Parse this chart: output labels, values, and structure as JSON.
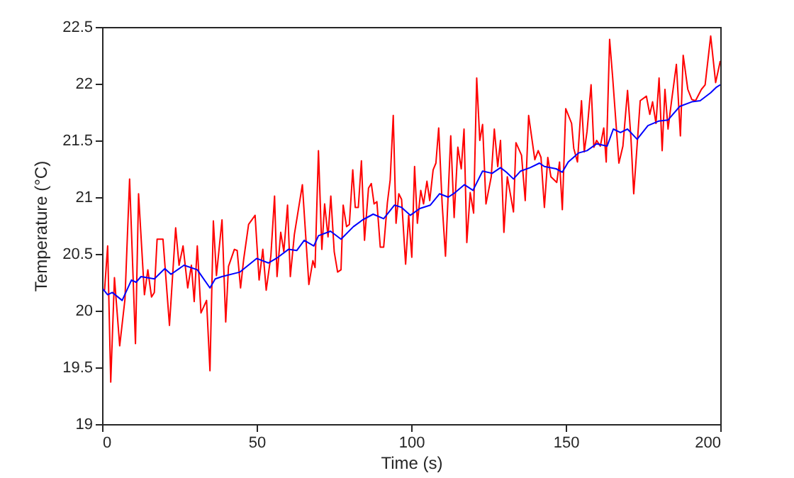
{
  "chart_data": {
    "type": "line",
    "xlabel": "Time (s)",
    "ylabel": "Temperature (°C)",
    "xlim": [
      0,
      200
    ],
    "xticks": [
      0,
      50,
      100,
      150,
      200
    ],
    "ylim": [
      19,
      22.5
    ],
    "yticks": [
      19,
      19.5,
      20,
      20.5,
      21,
      21.5,
      22,
      22.5
    ],
    "grid": false,
    "series": [
      {
        "color": "#ff0000",
        "x": [
          0.8,
          1.8,
          2.8,
          4,
          5.7,
          7.4,
          8.9,
          10.8,
          11.8,
          13.7,
          14.8,
          16,
          16.9,
          17.8,
          19.7,
          21.8,
          23.8,
          24.9,
          26.2,
          27.7,
          28.9,
          29.8,
          30.8,
          32,
          33.8,
          34.9,
          36,
          37,
          38.8,
          40,
          40.9,
          42.8,
          43.7,
          44.8,
          45.8,
          47.4,
          49.5,
          50.8,
          52,
          53.1,
          54.6,
          55.8,
          56.6,
          57.8,
          58.8,
          60,
          60.9,
          62.2,
          64.8,
          66.9,
          68.2,
          68.9,
          70,
          71.1,
          72,
          73.1,
          74,
          75.1,
          76.2,
          77.3,
          78,
          79.1,
          80,
          81.1,
          81.9,
          82.9,
          83.9,
          84.9,
          86.2,
          87.1,
          88,
          88.9,
          90,
          91.1,
          92.3,
          93.2,
          94.2,
          95.1,
          96,
          96.9,
          98.2,
          99.2,
          100.2,
          101.1,
          102,
          103.1,
          104,
          105.1,
          106,
          107.1,
          108,
          108.9,
          110,
          111.1,
          112.8,
          113.9,
          115.1,
          116.2,
          117.1,
          118,
          119.1,
          120.2,
          121.2,
          122.2,
          123.1,
          124.2,
          125.9,
          126.9,
          128,
          128.9,
          130,
          131.1,
          133.1,
          133.9,
          135.7,
          136.9,
          138,
          140,
          141.1,
          142,
          143.1,
          144.2,
          145.2,
          147.1,
          148,
          148.9,
          150,
          151.9,
          152.6,
          153.8,
          155.1,
          156,
          156.9,
          158.2,
          159.1,
          160,
          161.2,
          162.3,
          163.1,
          164.2,
          165.2,
          167.2,
          168.5,
          170,
          171.1,
          172,
          174.1,
          176.1,
          177.2,
          178.1,
          179.2,
          180.2,
          181.2,
          182.1,
          183.1,
          184.3,
          185.8,
          187.1,
          188,
          189.5,
          190.8,
          192,
          193.9,
          195.1,
          196.9,
          198.5,
          200
        ],
        "values": [
          20.18,
          20.57,
          19.37,
          20.29,
          19.69,
          20.1,
          21.16,
          19.71,
          21.03,
          20.14,
          20.36,
          20.12,
          20.16,
          20.63,
          20.63,
          19.87,
          20.73,
          20.4,
          20.57,
          20.2,
          20.4,
          20.08,
          20.57,
          19.98,
          20.09,
          19.47,
          20.79,
          20.31,
          20.8,
          19.9,
          20.39,
          20.54,
          20.53,
          20.2,
          20.45,
          20.76,
          20.84,
          20.27,
          20.54,
          20.18,
          20.48,
          21.01,
          20.3,
          20.69,
          20.52,
          20.93,
          20.3,
          20.67,
          21.11,
          20.23,
          20.44,
          20.38,
          21.41,
          20.54,
          20.94,
          20.65,
          21.01,
          20.52,
          20.34,
          20.36,
          20.93,
          20.74,
          20.76,
          21.24,
          20.91,
          20.91,
          21.32,
          20.62,
          21.08,
          21.12,
          20.94,
          20.96,
          20.56,
          20.56,
          20.95,
          21.15,
          21.72,
          20.77,
          21.03,
          20.98,
          20.41,
          20.84,
          20.47,
          21.27,
          20.77,
          21.06,
          20.94,
          21.14,
          20.97,
          21.24,
          21.3,
          21.61,
          20.95,
          20.48,
          21.54,
          20.82,
          21.44,
          21.25,
          21.6,
          20.6,
          21.04,
          20.86,
          22.05,
          21.5,
          21.64,
          20.94,
          21.18,
          21.6,
          21.27,
          21.5,
          20.69,
          21.18,
          20.87,
          21.48,
          21.37,
          20.97,
          21.72,
          21.33,
          21.41,
          21.35,
          20.91,
          21.35,
          21.18,
          21.13,
          21.31,
          20.89,
          21.78,
          21.65,
          21.43,
          21.31,
          21.85,
          21.4,
          21.58,
          21.99,
          21.44,
          21.5,
          21.45,
          21.61,
          21.31,
          22.39,
          22.05,
          21.3,
          21.45,
          21.94,
          21.52,
          21.03,
          21.85,
          21.89,
          21.73,
          21.84,
          21.65,
          22.05,
          21.41,
          21.95,
          21.6,
          21.86,
          22.17,
          21.54,
          22.25,
          21.95,
          21.86,
          21.85,
          21.95,
          21.99,
          22.42,
          22.01,
          22.2
        ]
      },
      {
        "color": "#0000ff",
        "x": [
          0.3,
          1.8,
          3.3,
          6.5,
          9.5,
          11,
          12.6,
          16.9,
          20.3,
          22.3,
          26.5,
          30.8,
          34.9,
          36.6,
          38.8,
          44.6,
          50,
          53.8,
          56.9,
          60.3,
          63,
          65.4,
          68.5,
          70,
          73.9,
          77.3,
          81.3,
          84.3,
          87.7,
          91.1,
          94.6,
          96.9,
          99.7,
          102.8,
          106.2,
          109.2,
          112,
          114.2,
          117.2,
          120,
          123.1,
          126.2,
          128.9,
          130.8,
          133.1,
          135.4,
          138.5,
          141.5,
          143.1,
          146.9,
          148.9,
          150.8,
          154.2,
          156.9,
          160,
          163.4,
          165.4,
          167.7,
          170,
          173.1,
          176.6,
          180,
          183.1,
          186.9,
          190.8,
          193.5,
          196.9,
          198.8,
          200
        ],
        "values": [
          20.19,
          20.14,
          20.16,
          20.09,
          20.27,
          20.25,
          20.3,
          20.28,
          20.37,
          20.32,
          20.4,
          20.36,
          20.2,
          20.28,
          20.3,
          20.34,
          20.46,
          20.42,
          20.47,
          20.54,
          20.53,
          20.62,
          20.57,
          20.66,
          20.7,
          20.63,
          20.74,
          20.8,
          20.85,
          20.81,
          20.93,
          20.91,
          20.84,
          20.9,
          20.93,
          21.03,
          21.0,
          21.04,
          21.11,
          21.06,
          21.23,
          21.21,
          21.26,
          21.22,
          21.16,
          21.23,
          21.26,
          21.3,
          21.27,
          21.25,
          21.22,
          21.31,
          21.39,
          21.41,
          21.47,
          21.45,
          21.6,
          21.57,
          21.6,
          21.51,
          21.63,
          21.67,
          21.68,
          21.8,
          21.84,
          21.85,
          21.92,
          21.97,
          21.99
        ]
      }
    ]
  }
}
